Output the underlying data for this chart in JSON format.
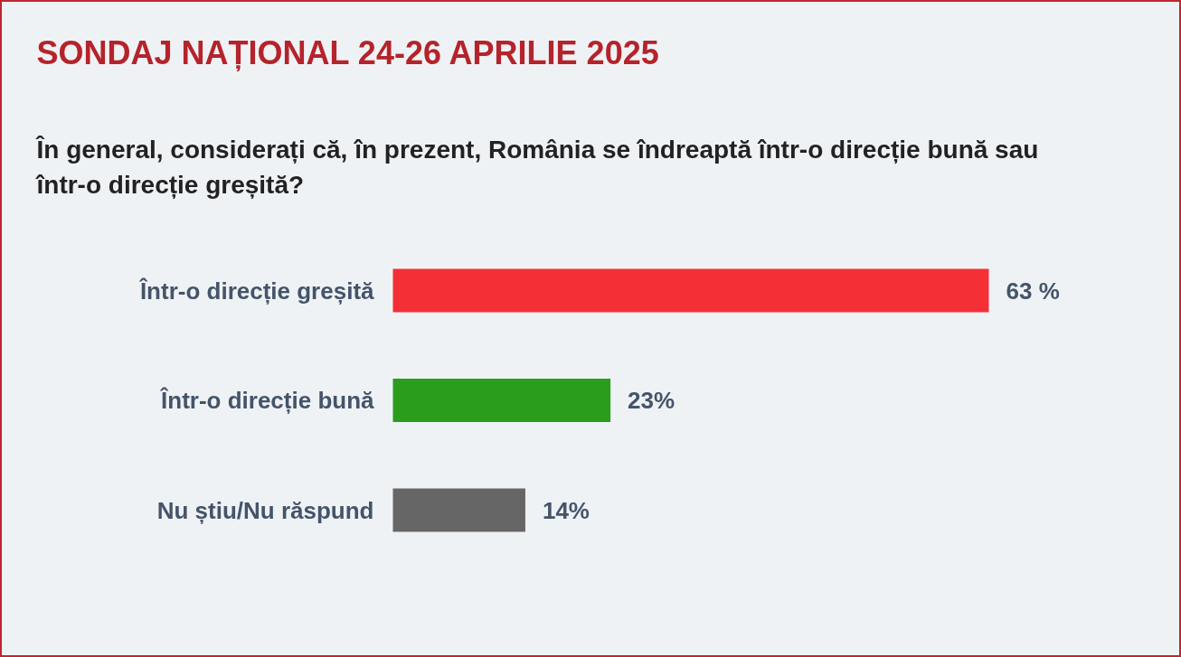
{
  "chart_data": {
    "type": "bar",
    "orientation": "horizontal",
    "title": "SONDAJ NAȚIONAL 24-26 APRILIE 2025",
    "subtitle": "În general, considerați că, în prezent, România se îndreaptă într-o direcție bună sau într-o direcție greșită?",
    "categories": [
      "Într-o direcție greșită",
      "Într-o direcție bună",
      "Nu știu/Nu răspund"
    ],
    "values": [
      63,
      23,
      14
    ],
    "colors": [
      "#f52f36",
      "#2a9d1c",
      "#666666"
    ],
    "value_labels": [
      "63 %",
      "23%",
      "14%"
    ]
  }
}
